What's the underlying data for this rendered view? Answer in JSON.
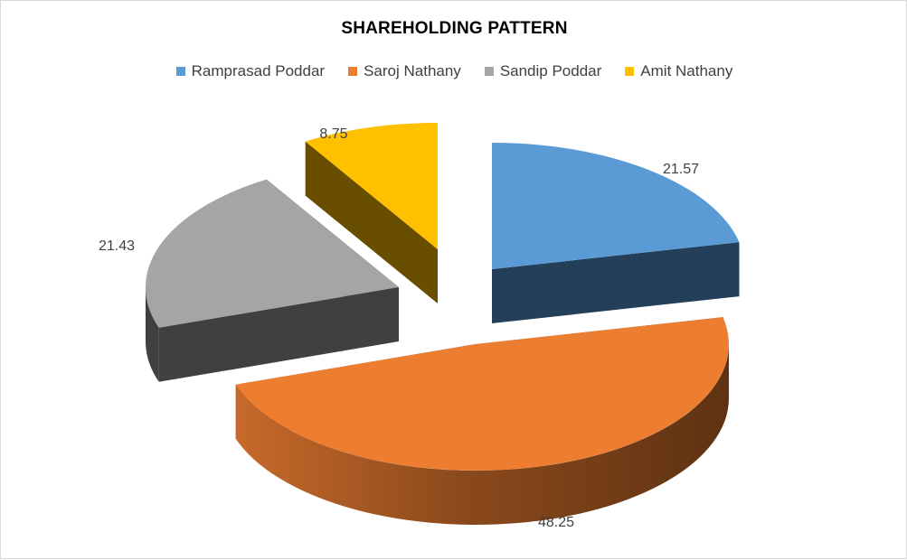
{
  "chart_data": {
    "type": "pie",
    "title": "SHAREHOLDING PATTERN",
    "categories": [
      "Ramprasad Poddar",
      "Saroj Nathany",
      "Sandip Poddar",
      "Amit Nathany"
    ],
    "values": [
      21.57,
      48.25,
      21.43,
      8.75
    ],
    "data_labels": [
      "21.57",
      "48.25",
      "21.43",
      "8.75"
    ],
    "colors": [
      "#5b9bd5",
      "#ed7d31",
      "#a5a5a5",
      "#ffc000"
    ],
    "style": "3d-exploded",
    "legend_position": "top"
  }
}
